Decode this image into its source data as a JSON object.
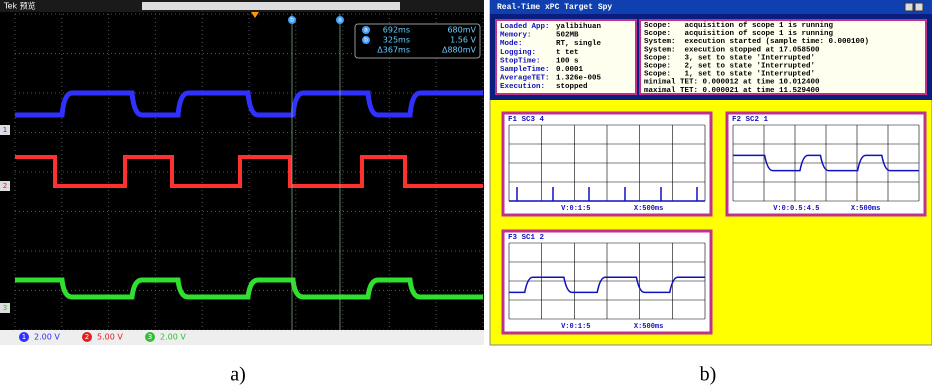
{
  "figure_labels": [
    "a)",
    "b)"
  ],
  "oscilloscope": {
    "header": "Tek 预览",
    "cursor_labels": [
      "b",
      "a"
    ],
    "readout": [
      {
        "label": "a",
        "time": "692ms",
        "volt": "680mV"
      },
      {
        "label": "b",
        "time": "325ms",
        "volt": "1.56 V"
      },
      {
        "time": "Δ367ms",
        "volt": "Δ880mV"
      }
    ],
    "channels": [
      {
        "id": "1",
        "scale": "2.00 V"
      },
      {
        "id": "2",
        "scale": "5.00 V"
      },
      {
        "id": "3",
        "scale": "2.00 V"
      }
    ]
  },
  "spy": {
    "title": "Real-Time xPC Target Spy",
    "info": [
      {
        "label": "Loaded App:",
        "value": "yalibihuan"
      },
      {
        "label": "Memory:",
        "value": "502MB"
      },
      {
        "label": "Mode:",
        "value": "RT, single"
      },
      {
        "label": "Logging:",
        "value": "t tet"
      },
      {
        "label": "StopTime:",
        "value": "100 s"
      },
      {
        "label": "SampleTime:",
        "value": "0.0001"
      },
      {
        "label": "AverageTET:",
        "value": "1.326e-005"
      },
      {
        "label": "Execution:",
        "value": "stopped"
      }
    ],
    "log": [
      "Scope:   acquisition of scope 1 is running",
      "Scope:   acquisition of scope 1 is running",
      "System:  execution started (sample time: 0.000100)",
      "System:  execution stopped at 17.058500",
      "Scope:   3, set to state 'Interrupted'",
      "Scope:   2, set to state 'Interrupted'",
      "Scope:   1, set to state 'Interrupted'",
      "minimal TET: 0.000012 at time 10.012400",
      "maximal TET: 0.000021 at time 11.529400"
    ],
    "scopes": [
      {
        "title": "F1 SC3 4",
        "y_label": "V:0:1:5",
        "x_label": "X:500ms"
      },
      {
        "title": "F2 SC2 1",
        "y_label": "V:0:0.5:4.5",
        "x_label": "X:500ms"
      },
      {
        "title": "F3 SC1 2",
        "y_label": "V:0:1:5",
        "x_label": "X:500ms"
      }
    ]
  }
}
